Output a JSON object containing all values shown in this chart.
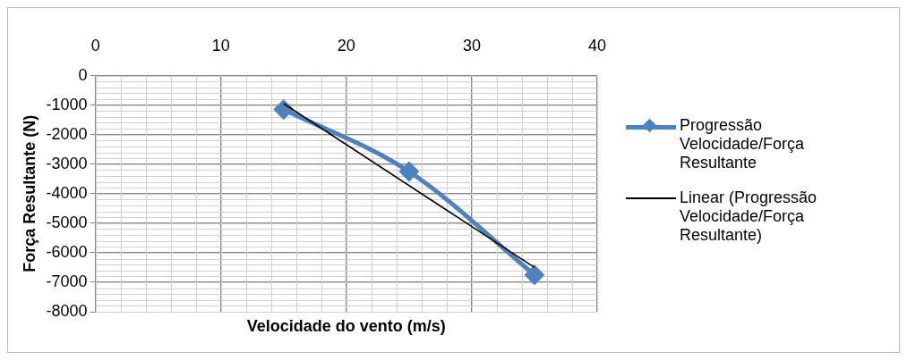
{
  "chart_data": {
    "type": "line",
    "xlabel": "Velocidade do vento (m/s)",
    "ylabel": "Força Resultante (N)",
    "xlim": [
      0,
      40
    ],
    "xticks": [
      0,
      10,
      20,
      30,
      40
    ],
    "ylim": [
      -8000,
      0
    ],
    "yticks": [
      -8000,
      -7000,
      -6000,
      -5000,
      -4000,
      -3000,
      -2000,
      -1000,
      0
    ],
    "grid": true,
    "legend": "right",
    "marker": "diamond",
    "series": [
      {
        "name": "Progressão Velocidade/Força Resultante",
        "color": "#4f81bd",
        "x": [
          15,
          25,
          35
        ],
        "values": [
          -1150,
          -3250,
          -6750
        ]
      },
      {
        "name": "Linear (Progressão Velocidade/Força Resultante)",
        "color": "#000000",
        "type": "line",
        "marker": "none",
        "x": [
          15,
          35
        ],
        "values": [
          -950,
          -6500
        ]
      }
    ]
  }
}
